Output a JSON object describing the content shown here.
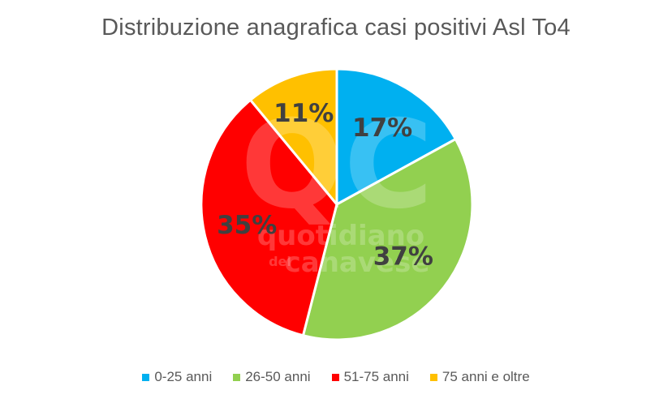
{
  "chart_data": {
    "type": "pie",
    "title": "Distribuzione anagrafica casi positivi Asl To4",
    "categories": [
      "0-25 anni",
      "26-50 anni",
      "51-75 anni",
      "75 anni e oltre"
    ],
    "values": [
      17,
      37,
      35,
      11
    ],
    "labels": [
      "17%",
      "37%",
      "35%",
      "11%"
    ],
    "colors": [
      "#00B0F0",
      "#92D050",
      "#FF0000",
      "#FFC000"
    ],
    "start_angle_deg": 0,
    "direction": "clockwise",
    "legend_position": "bottom"
  },
  "watermark": {
    "logo": "QC",
    "line1": "quotidiano",
    "line2_prefix": "del",
    "line2": "canavese"
  }
}
